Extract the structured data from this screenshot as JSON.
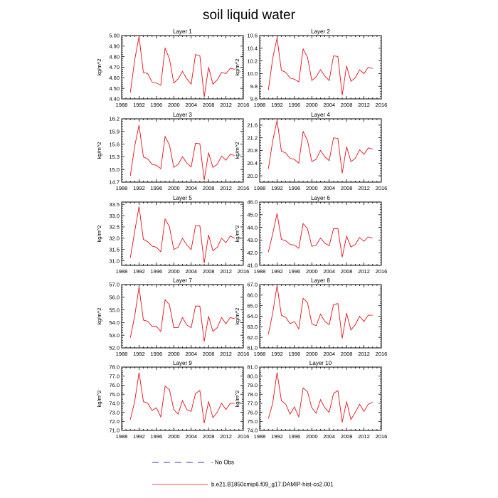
{
  "chart_data": {
    "type": "line",
    "title": "soil liquid water",
    "ylabel": "kg/m^2",
    "xlim": [
      1988,
      2016
    ],
    "xticks": [
      1988,
      1992,
      1996,
      2000,
      2004,
      2008,
      2012,
      2016
    ],
    "x": [
      1990,
      1991,
      1992,
      1993,
      1994,
      1995,
      1996,
      1997,
      1998,
      1999,
      2000,
      2001,
      2002,
      2003,
      2004,
      2005,
      2006,
      2007,
      2008,
      2009,
      2010,
      2011,
      2012,
      2013,
      2014
    ],
    "legend": [
      {
        "label": "- No Obs",
        "style": "dashed",
        "color": "#3a3aa0"
      },
      {
        "label": "b.e21.B1850cmip6.f09_g17.DAMIP-hist-co2.001",
        "style": "solid",
        "color": "#e8101a"
      }
    ],
    "panels": [
      {
        "title": "Layer 1",
        "ylim": [
          4.4,
          5.0
        ],
        "yticks": [
          "4.40",
          "4.50",
          "4.60",
          "4.70",
          "4.80",
          "4.90",
          "5.00"
        ],
        "series": [
          {
            "values": [
              4.46,
              4.77,
              4.99,
              4.65,
              4.64,
              4.56,
              4.55,
              4.53,
              4.88,
              4.78,
              4.55,
              4.59,
              4.66,
              4.59,
              4.54,
              4.82,
              4.81,
              4.42,
              4.7,
              4.54,
              4.58,
              4.65,
              4.64,
              4.69,
              4.68
            ]
          }
        ]
      },
      {
        "title": "Layer 2",
        "ylim": [
          9.6,
          10.6
        ],
        "yticks": [
          "9.6",
          "9.8",
          "10.0",
          "10.2",
          "10.4",
          "10.6"
        ],
        "series": [
          {
            "values": [
              9.74,
              10.24,
              10.56,
              10.05,
              10.02,
              9.93,
              9.91,
              9.87,
              10.39,
              10.26,
              9.89,
              9.95,
              10.06,
              9.96,
              9.89,
              10.28,
              10.27,
              9.66,
              10.12,
              9.88,
              9.93,
              10.06,
              10.0,
              10.1,
              10.08
            ]
          }
        ]
      },
      {
        "title": "Layer 3",
        "ylim": [
          14.7,
          16.2
        ],
        "yticks": [
          "14.7",
          "15.0",
          "15.3",
          "15.6",
          "15.9",
          "16.2"
        ],
        "series": [
          {
            "values": [
              14.85,
              15.55,
              16.05,
              15.3,
              15.25,
              15.12,
              15.1,
              15.02,
              15.78,
              15.58,
              15.05,
              15.12,
              15.3,
              15.15,
              15.06,
              15.62,
              15.61,
              14.75,
              15.4,
              15.05,
              15.12,
              15.32,
              15.22,
              15.36,
              15.33
            ]
          }
        ]
      },
      {
        "title": "Layer 4",
        "ylim": [
          19.8,
          21.8
        ],
        "yticks": [
          "20.0",
          "20.4",
          "20.8",
          "21.2",
          "21.6"
        ],
        "series": [
          {
            "values": [
              20.22,
              21.1,
              21.75,
              20.78,
              20.72,
              20.55,
              20.52,
              20.4,
              21.4,
              21.12,
              20.45,
              20.52,
              20.8,
              20.6,
              20.48,
              21.2,
              21.18,
              20.08,
              20.92,
              20.45,
              20.55,
              20.82,
              20.68,
              20.88,
              20.84
            ]
          }
        ]
      },
      {
        "title": "Layer 5",
        "ylim": [
          30.8,
          33.6
        ],
        "yticks": [
          "31.0",
          "31.5",
          "32.0",
          "32.5",
          "33.0",
          "33.5"
        ],
        "series": [
          {
            "values": [
              31.13,
              32.3,
              33.4,
              31.95,
              31.85,
              31.65,
              31.6,
              31.4,
              32.85,
              32.5,
              31.5,
              31.6,
              32.0,
              31.7,
              31.5,
              32.55,
              32.55,
              30.9,
              32.15,
              31.45,
              31.6,
              32.0,
              31.8,
              32.1,
              32.0
            ]
          }
        ]
      },
      {
        "title": "Layer 6",
        "ylim": [
          41.0,
          46.0
        ],
        "yticks": [
          "41.0",
          "42.0",
          "43.0",
          "44.0",
          "45.0",
          "46.0"
        ],
        "series": [
          {
            "values": [
              42.05,
              43.5,
              45.1,
              43.05,
              42.95,
              42.65,
              42.6,
              42.35,
              44.3,
              43.9,
              42.5,
              42.6,
              43.15,
              42.75,
              42.55,
              43.9,
              43.9,
              41.65,
              43.3,
              42.45,
              42.65,
              43.2,
              42.9,
              43.25,
              43.15
            ]
          }
        ]
      },
      {
        "title": "Layer 7",
        "ylim": [
          52.0,
          57.0
        ],
        "yticks": [
          "52.0",
          "53.0",
          "54.0",
          "55.0",
          "56.0",
          "57.0"
        ],
        "series": [
          {
            "values": [
              52.8,
              54.5,
              56.8,
              54.2,
              54.1,
              53.7,
              53.7,
              53.3,
              55.8,
              55.4,
              53.6,
              53.6,
              54.4,
              53.8,
              53.6,
              55.3,
              55.3,
              52.5,
              54.5,
              53.3,
              53.6,
              54.4,
              53.9,
              54.4,
              54.3
            ]
          }
        ]
      },
      {
        "title": "Layer 8",
        "ylim": [
          61.0,
          67.0
        ],
        "yticks": [
          "61.0",
          "62.0",
          "63.0",
          "64.0",
          "65.0",
          "66.0",
          "67.0"
        ],
        "series": [
          {
            "values": [
              62.3,
              64.3,
              66.9,
              64.1,
              63.9,
              63.3,
              63.5,
              62.8,
              65.7,
              65.3,
              63.3,
              63.1,
              64.2,
              63.5,
              63.2,
              65.1,
              65.2,
              61.9,
              64.3,
              62.7,
              63.2,
              64.0,
              63.5,
              64.1,
              64.1
            ]
          }
        ]
      },
      {
        "title": "Layer 9",
        "ylim": [
          71.0,
          78.0
        ],
        "yticks": [
          "71.0",
          "72.0",
          "73.0",
          "74.0",
          "75.0",
          "76.0",
          "77.0",
          "78.0"
        ],
        "series": [
          {
            "values": [
              72.2,
              74.2,
              77.4,
              74.2,
              74.0,
              73.2,
              73.5,
              72.5,
              75.9,
              75.5,
              73.3,
              72.8,
              74.3,
              73.3,
              73.1,
              75.1,
              75.4,
              71.8,
              74.2,
              72.4,
              73.0,
              74.0,
              73.3,
              74.0,
              74.0
            ]
          }
        ]
      },
      {
        "title": "Layer 10",
        "ylim": [
          74.0,
          81.0
        ],
        "yticks": [
          "74.0",
          "75.0",
          "76.0",
          "77.0",
          "78.0",
          "79.0",
          "80.0",
          "81.0"
        ],
        "series": [
          {
            "values": [
              75.3,
              77.0,
              80.4,
              77.3,
              76.9,
              75.8,
              76.6,
              75.5,
              78.7,
              78.3,
              76.5,
              75.9,
              77.4,
              76.5,
              76.0,
              78.1,
              78.4,
              74.9,
              77.2,
              75.2,
              76.0,
              76.9,
              76.1,
              76.9,
              77.1
            ]
          }
        ]
      }
    ]
  }
}
